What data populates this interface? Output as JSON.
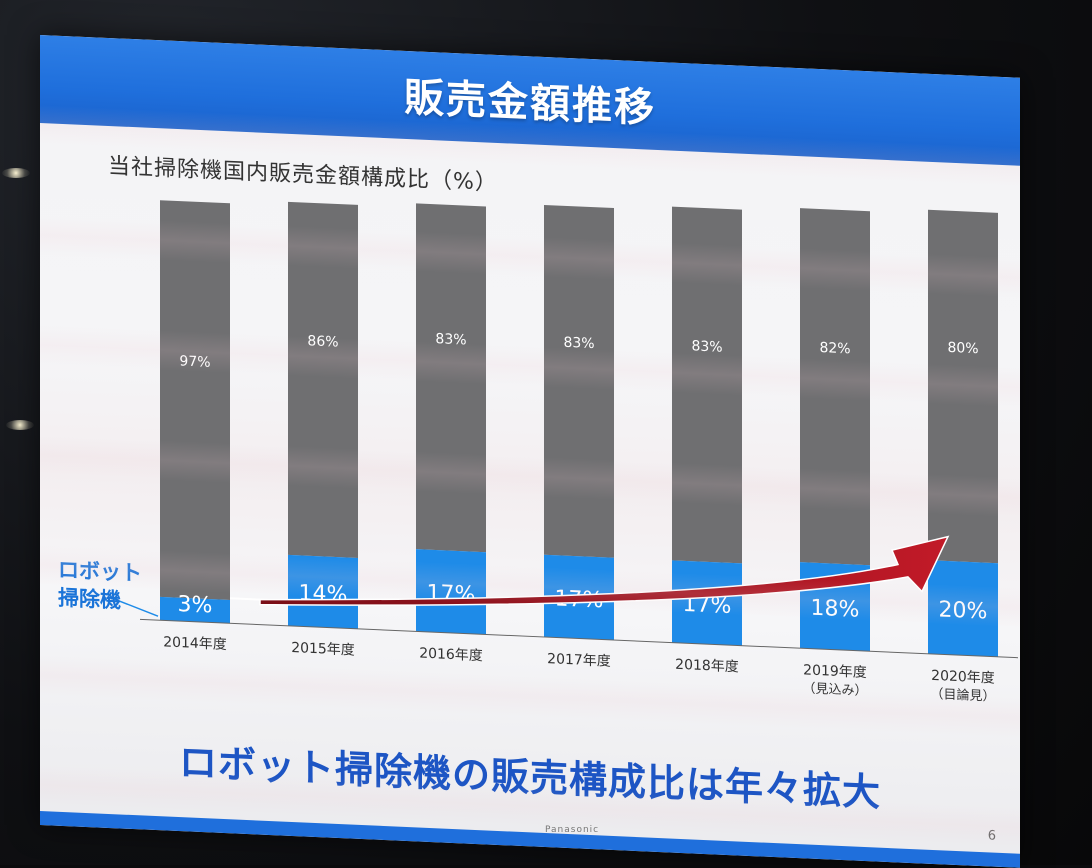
{
  "slide": {
    "title": "販売金額推移",
    "subtitle": "当社掃除機国内販売金額構成比（%）",
    "callout": [
      "ロボット",
      "掃除機"
    ],
    "footer": "ロボット掃除機の販売構成比は年々拡大",
    "page_number": "6"
  },
  "monitor": {
    "brand": "Panasonic"
  },
  "colors": {
    "title_band": "#1f6fdc",
    "other_bar": "#6f6f71",
    "robot_bar": "#1e8be8",
    "arrow": "#9c1420",
    "footer_text": "#1d55c4"
  },
  "chart_data": {
    "type": "bar",
    "stacked": true,
    "categories": [
      "2014年度",
      "2015年度",
      "2016年度",
      "2017年度",
      "2018年度",
      "2019年度\n（見込み）",
      "2020年度\n（目論見）"
    ],
    "series": [
      {
        "name": "ロボット掃除機",
        "values": [
          3,
          14,
          17,
          17,
          17,
          18,
          20
        ],
        "labels": [
          "3%",
          "14%",
          "17%",
          "17%",
          "17%",
          "18%",
          "20%"
        ]
      },
      {
        "values": [
          97,
          86,
          83,
          83,
          83,
          82,
          80
        ],
        "labels": [
          "97%",
          "86%",
          "83%",
          "83%",
          "83%",
          "82%",
          "80%"
        ]
      }
    ],
    "ylim": [
      0,
      100
    ],
    "grid": false,
    "annotation": "trend arrow (increasing)"
  }
}
